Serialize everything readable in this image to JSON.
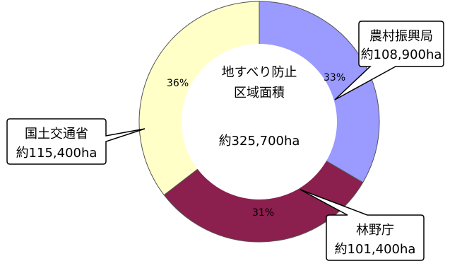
{
  "chart_data": {
    "type": "pie",
    "donut": true,
    "center_label": [
      "地すべり防止",
      "区域面積"
    ],
    "center_total": "約325,700ha",
    "slices": [
      {
        "name": "農村振興局",
        "value_ha": 108900,
        "area_label": "約108,900ha",
        "percent_label": "33%",
        "color": "#9a9aff"
      },
      {
        "name": "林野庁",
        "value_ha": 101400,
        "area_label": "約101,400ha",
        "percent_label": "31%",
        "color": "#8b1f4e"
      },
      {
        "name": "国土交通省",
        "value_ha": 115400,
        "area_label": "約115,400ha",
        "percent_label": "36%",
        "color": "#ffffc7"
      }
    ]
  }
}
